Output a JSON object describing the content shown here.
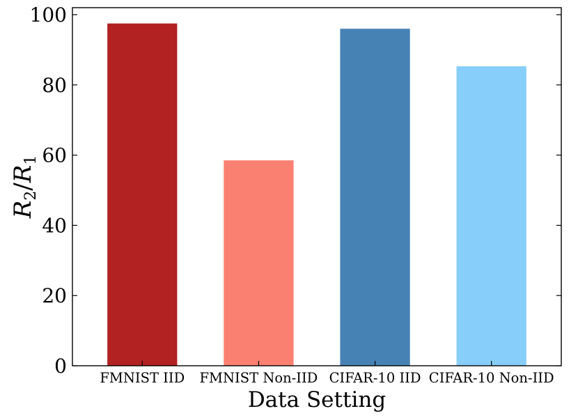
{
  "chart_data": {
    "type": "bar",
    "title": "",
    "xlabel": "Data Setting",
    "ylabel": {
      "base": "R",
      "numerator_sub": "2",
      "denominator_sub": "1"
    },
    "categories": [
      "FMNIST IID",
      "FMNIST Non-IID",
      "CIFAR-10 IID",
      "CIFAR-10 Non-IID"
    ],
    "values": [
      97.5,
      58.5,
      96.0,
      85.3
    ],
    "colors": [
      "#b22222",
      "#fa8072",
      "#4682b4",
      "#87cefa"
    ],
    "ylim": [
      0,
      102
    ],
    "yticks": [
      "0",
      "20",
      "40",
      "60",
      "80",
      "100"
    ],
    "grid": false,
    "legend": null
  }
}
